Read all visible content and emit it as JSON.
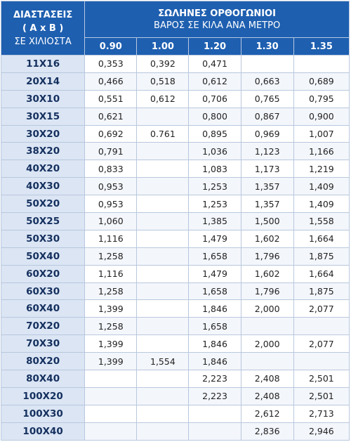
{
  "header": {
    "dimension_title": "ΔΙΑΣΤΑΣΕΙΣ",
    "dimension_formula": "( A x B )",
    "dimension_unit": "ΣΕ ΧΙΛΙΟΣΤΑ",
    "title": "ΣΩΛΗΝΕΣ ΟΡΘΟΓΩΝΙΟΙ",
    "subtitle": "ΒΑΡΟΣ ΣΕ ΚΙΛΑ ΑΝΑ ΜΕΤΡΟ",
    "thickness": [
      "0.90",
      "1.00",
      "1.20",
      "1.30",
      "1.35"
    ]
  },
  "table": {
    "rows": [
      [
        "11X16",
        "0,353",
        "0,392",
        "0,471",
        null,
        null
      ],
      [
        "20X14",
        "0,466",
        "0,518",
        "0,612",
        "0,663",
        "0,689"
      ],
      [
        "30X10",
        "0,551",
        "0,612",
        "0,706",
        "0,765",
        "0,795"
      ],
      [
        "30X15",
        "0,621",
        null,
        "0,800",
        "0,867",
        "0,900"
      ],
      [
        "30X20",
        "0,692",
        "0.761",
        "0,895",
        "0,969",
        "1,007"
      ],
      [
        "38X20",
        "0,791",
        null,
        "1,036",
        "1,123",
        "1,166"
      ],
      [
        "40X20",
        "0,833",
        null,
        "1,083",
        "1,173",
        "1,219"
      ],
      [
        "40X30",
        "0,953",
        null,
        "1,253",
        "1,357",
        "1,409"
      ],
      [
        "50X20",
        "0,953",
        null,
        "1,253",
        "1,357",
        "1,409"
      ],
      [
        "50X25",
        "1,060",
        null,
        "1,385",
        "1,500",
        "1,558"
      ],
      [
        "50X30",
        "1,116",
        null,
        "1,479",
        "1,602",
        "1,664"
      ],
      [
        "50X40",
        "1,258",
        null,
        "1,658",
        "1,796",
        "1,875"
      ],
      [
        "60X20",
        "1,116",
        null,
        "1,479",
        "1,602",
        "1,664"
      ],
      [
        "60X30",
        "1,258",
        null,
        "1,658",
        "1,796",
        "1,875"
      ],
      [
        "60X40",
        "1,399",
        null,
        "1,846",
        "2,000",
        "2,077"
      ],
      [
        "70X20",
        "1,258",
        null,
        "1,658",
        null,
        null
      ],
      [
        "70X30",
        "1,399",
        null,
        "1,846",
        "2,000",
        "2,077"
      ],
      [
        "80X20",
        "1,399",
        "1,554",
        "1,846",
        null,
        null
      ],
      [
        "80X40",
        null,
        null,
        "2,223",
        "2,408",
        "2,501"
      ],
      [
        "100X20",
        null,
        null,
        "2,223",
        "2,408",
        "2,501"
      ],
      [
        "100X30",
        null,
        null,
        null,
        "2,612",
        "2,713"
      ],
      [
        "100X40",
        null,
        null,
        null,
        "2,836",
        "2,946"
      ]
    ]
  }
}
